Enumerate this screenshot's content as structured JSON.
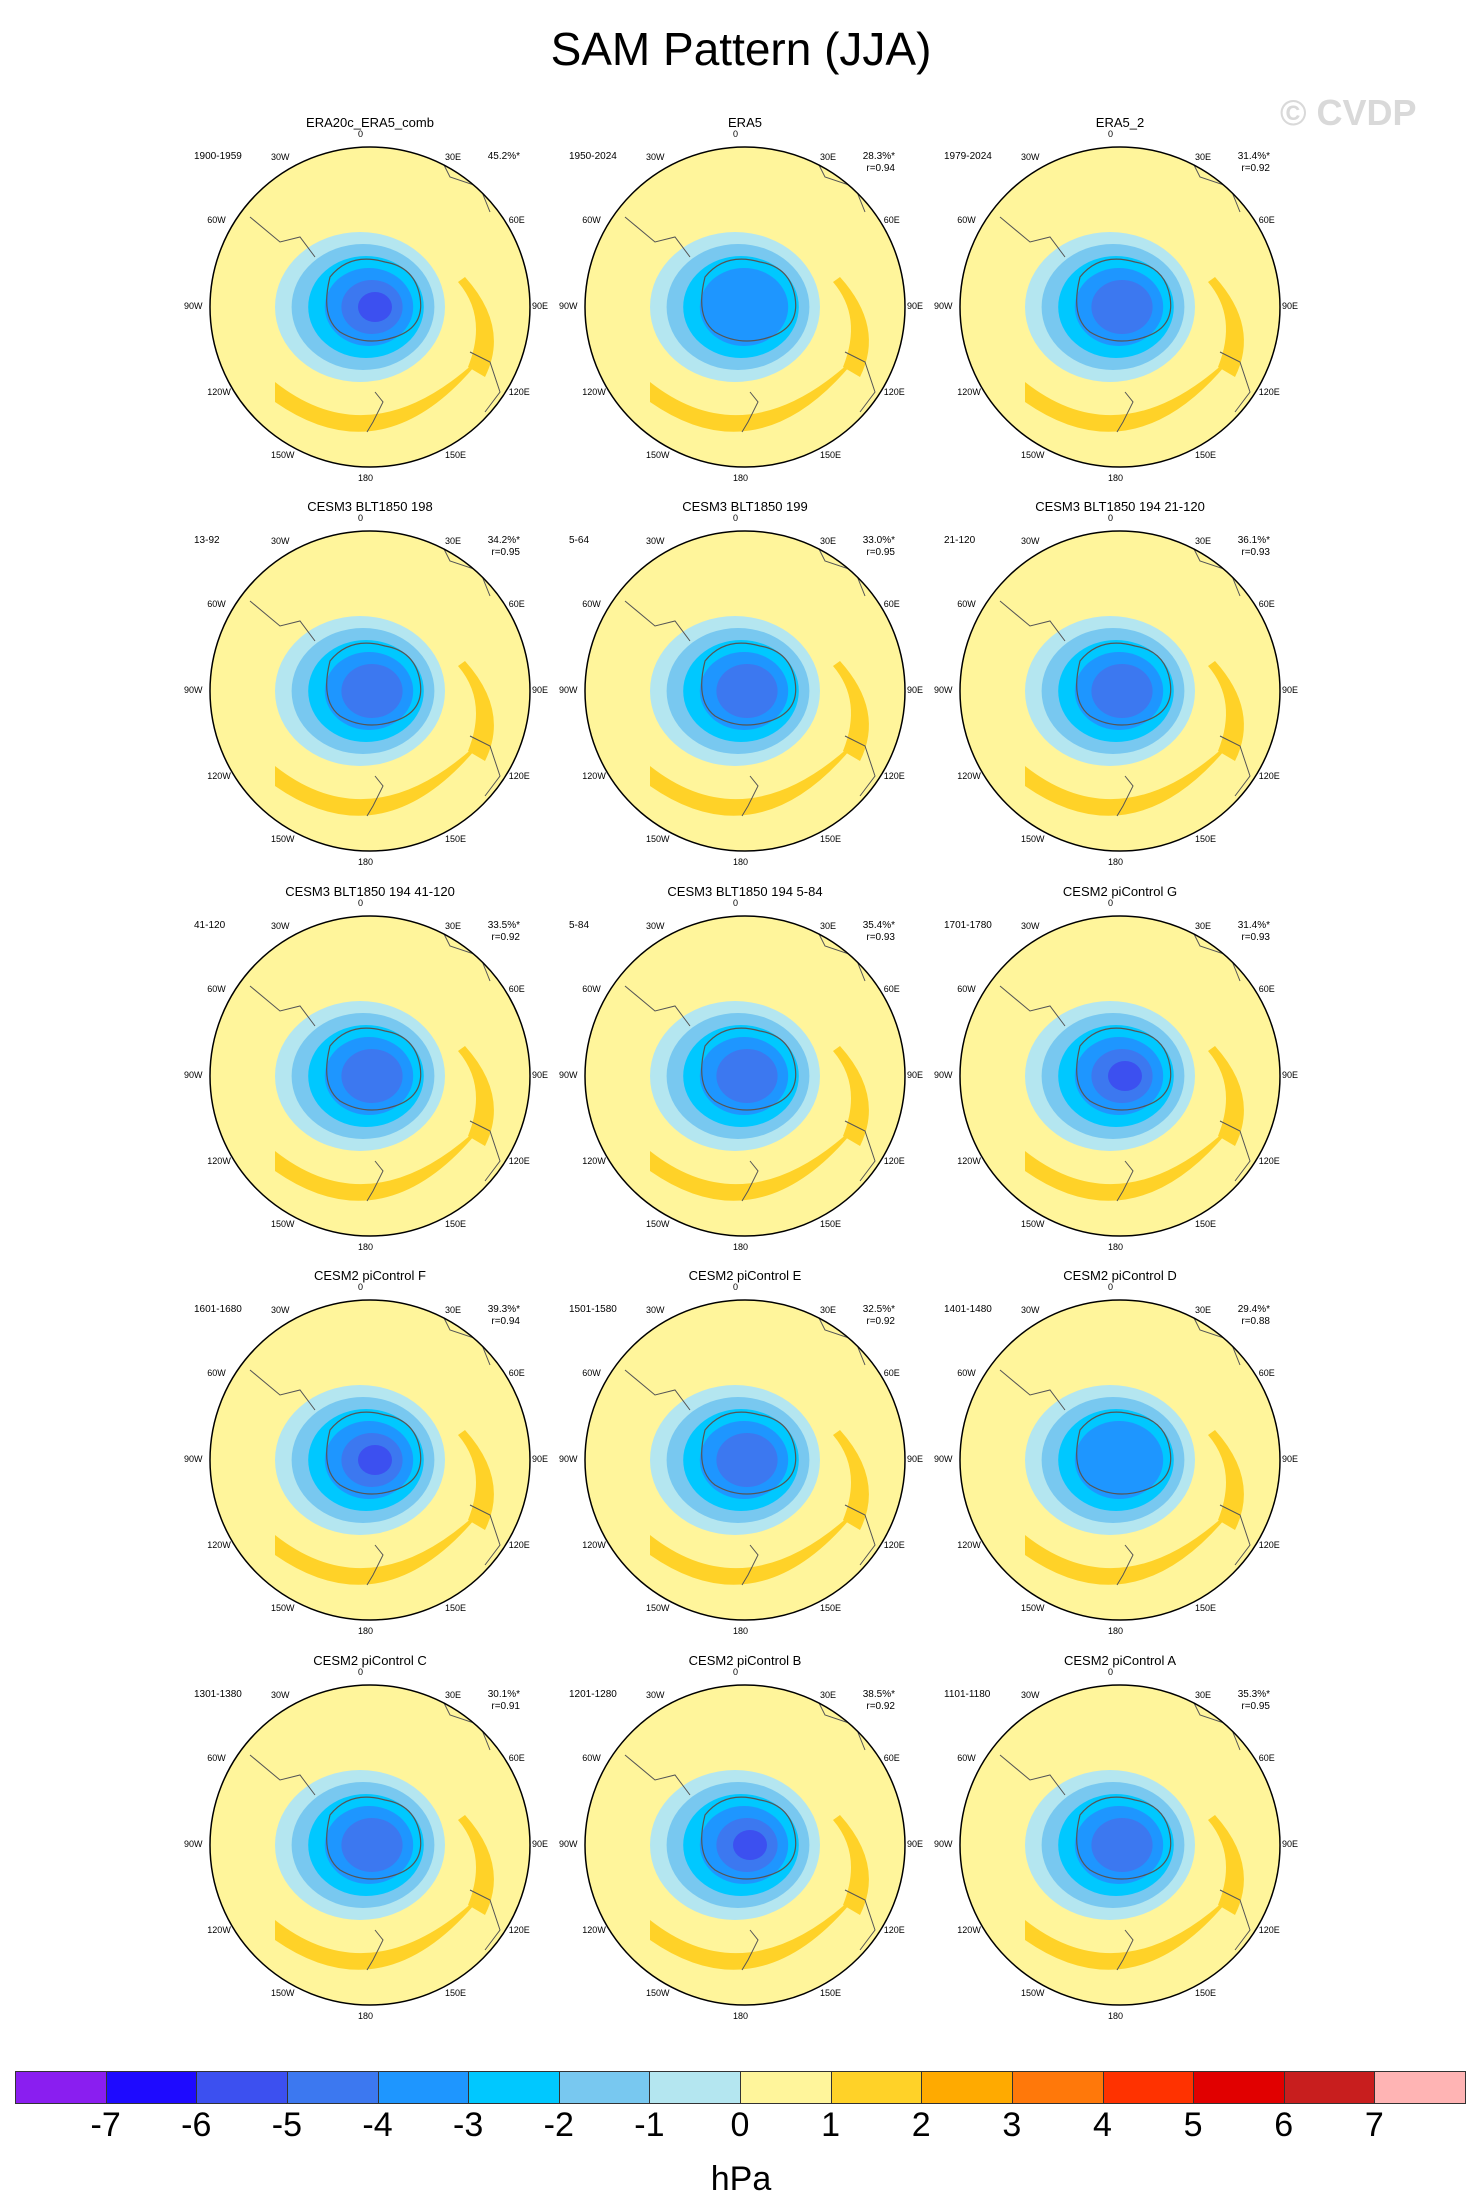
{
  "title": "SAM Pattern (JJA)",
  "watermark": "© CVDP",
  "longitude_labels": [
    "0",
    "30E",
    "60E",
    "90E",
    "120E",
    "150E",
    "180",
    "150W",
    "120W",
    "90W",
    "60W",
    "30W"
  ],
  "panels": [
    {
      "name": "ERA20c_ERA5_comb",
      "period": "1900-1959",
      "variance": "45.2%*",
      "corr": ""
    },
    {
      "name": "ERA5",
      "period": "1950-2024",
      "variance": "28.3%*",
      "corr": "r=0.94"
    },
    {
      "name": "ERA5_2",
      "period": "1979-2024",
      "variance": "31.4%*",
      "corr": "r=0.92"
    },
    {
      "name": "CESM3 BLT1850 198",
      "period": "13-92",
      "variance": "34.2%*",
      "corr": "r=0.95"
    },
    {
      "name": "CESM3 BLT1850 199",
      "period": "5-64",
      "variance": "33.0%*",
      "corr": "r=0.95"
    },
    {
      "name": "CESM3 BLT1850 194 21-120",
      "period": "21-120",
      "variance": "36.1%*",
      "corr": "r=0.93"
    },
    {
      "name": "CESM3 BLT1850 194 41-120",
      "period": "41-120",
      "variance": "33.5%*",
      "corr": "r=0.92"
    },
    {
      "name": "CESM3 BLT1850 194 5-84",
      "period": "5-84",
      "variance": "35.4%*",
      "corr": "r=0.93"
    },
    {
      "name": "CESM2 piControl G",
      "period": "1701-1780",
      "variance": "31.4%*",
      "corr": "r=0.93"
    },
    {
      "name": "CESM2 piControl F",
      "period": "1601-1680",
      "variance": "39.3%*",
      "corr": "r=0.94"
    },
    {
      "name": "CESM2 piControl E",
      "period": "1501-1580",
      "variance": "32.5%*",
      "corr": "r=0.92"
    },
    {
      "name": "CESM2 piControl D",
      "period": "1401-1480",
      "variance": "29.4%*",
      "corr": "r=0.88"
    },
    {
      "name": "CESM2 piControl C",
      "period": "1301-1380",
      "variance": "30.1%*",
      "corr": "r=0.91"
    },
    {
      "name": "CESM2 piControl B",
      "period": "1201-1280",
      "variance": "38.5%*",
      "corr": "r=0.92"
    },
    {
      "name": "CESM2 piControl A",
      "period": "1101-1180",
      "variance": "35.3%*",
      "corr": "r=0.95"
    }
  ],
  "colorbar": {
    "unit": "hPa",
    "ticks": [
      "-7",
      "-6",
      "-5",
      "-4",
      "-3",
      "-2",
      "-1",
      "0",
      "1",
      "2",
      "3",
      "4",
      "5",
      "6",
      "7"
    ],
    "colors": [
      "#8a1ef0",
      "#1e0aff",
      "#3c50f0",
      "#3c78f0",
      "#1e96ff",
      "#00c8ff",
      "#78c8f0",
      "#b4e6f0",
      "#fff59b",
      "#ffd228",
      "#ffaa00",
      "#ff780a",
      "#ff3200",
      "#e10000",
      "#c81e1e",
      "#ffb4b4"
    ]
  },
  "colors": {
    "land_line": "#555555",
    "low_deep": "#3c50f0",
    "background_field": "#fff59b"
  }
}
